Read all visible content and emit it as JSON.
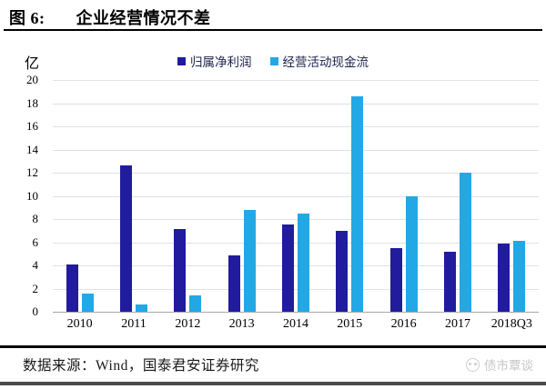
{
  "header": {
    "figure_label": "图 6:",
    "title": "企业经营情况不差"
  },
  "unit_label": "亿",
  "legend": {
    "series1_label": "归属净利润",
    "series2_label": "经营活动现金流"
  },
  "footer": {
    "source_text": "数据来源：Wind，国泰君安证券研究",
    "watermark_text": "债市覃谈",
    "watermark_icon": "circle-face-logo"
  },
  "colors": {
    "series1": "#211b9e",
    "series2": "#23a8e6",
    "gridline": "#e1e1e1",
    "axis_baseline": "#a9a9a9",
    "watermark": "#c6c6c6"
  },
  "chart_data": {
    "type": "bar",
    "title": "企业经营情况不差",
    "unit": "亿",
    "categories": [
      "2010",
      "2011",
      "2012",
      "2013",
      "2014",
      "2015",
      "2016",
      "2017",
      "2018Q3"
    ],
    "series": [
      {
        "name": "归属净利润",
        "color": "#211b9e",
        "values": [
          4.1,
          12.6,
          7.1,
          4.9,
          7.5,
          7.0,
          5.5,
          5.2,
          5.9
        ]
      },
      {
        "name": "经营活动现金流",
        "color": "#23a8e6",
        "values": [
          1.6,
          0.6,
          1.4,
          8.8,
          8.5,
          18.6,
          10.0,
          12.0,
          6.1
        ]
      }
    ],
    "ylim": [
      0,
      20
    ],
    "ytick_step": 2,
    "yticks": [
      0,
      2,
      4,
      6,
      8,
      10,
      12,
      14,
      16,
      18,
      20
    ],
    "grid": true,
    "legend_position": "top-center"
  }
}
